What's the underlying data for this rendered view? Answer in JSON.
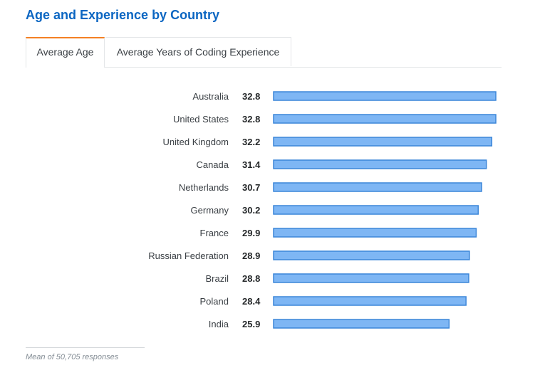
{
  "title": "Age and Experience by Country",
  "tabs": [
    {
      "label": "Average Age",
      "active": true
    },
    {
      "label": "Average Years of Coding Experience",
      "active": false
    }
  ],
  "colors": {
    "title": "#0b66c2",
    "active_tab_border": "#f48024",
    "bar_fill": "#7eb6f4",
    "bar_stroke": "#3c86d8"
  },
  "chart_data": {
    "type": "bar",
    "orientation": "horizontal",
    "categories": [
      "Australia",
      "United States",
      "United Kingdom",
      "Canada",
      "Netherlands",
      "Germany",
      "France",
      "Russian Federation",
      "Brazil",
      "Poland",
      "India"
    ],
    "values": [
      32.8,
      32.8,
      32.2,
      31.4,
      30.7,
      30.2,
      29.9,
      28.9,
      28.8,
      28.4,
      25.9
    ],
    "xlim": [
      0,
      32.8
    ],
    "data_labels": true,
    "grid": false,
    "legend": false
  },
  "footnote": "Mean of 50,705 responses"
}
